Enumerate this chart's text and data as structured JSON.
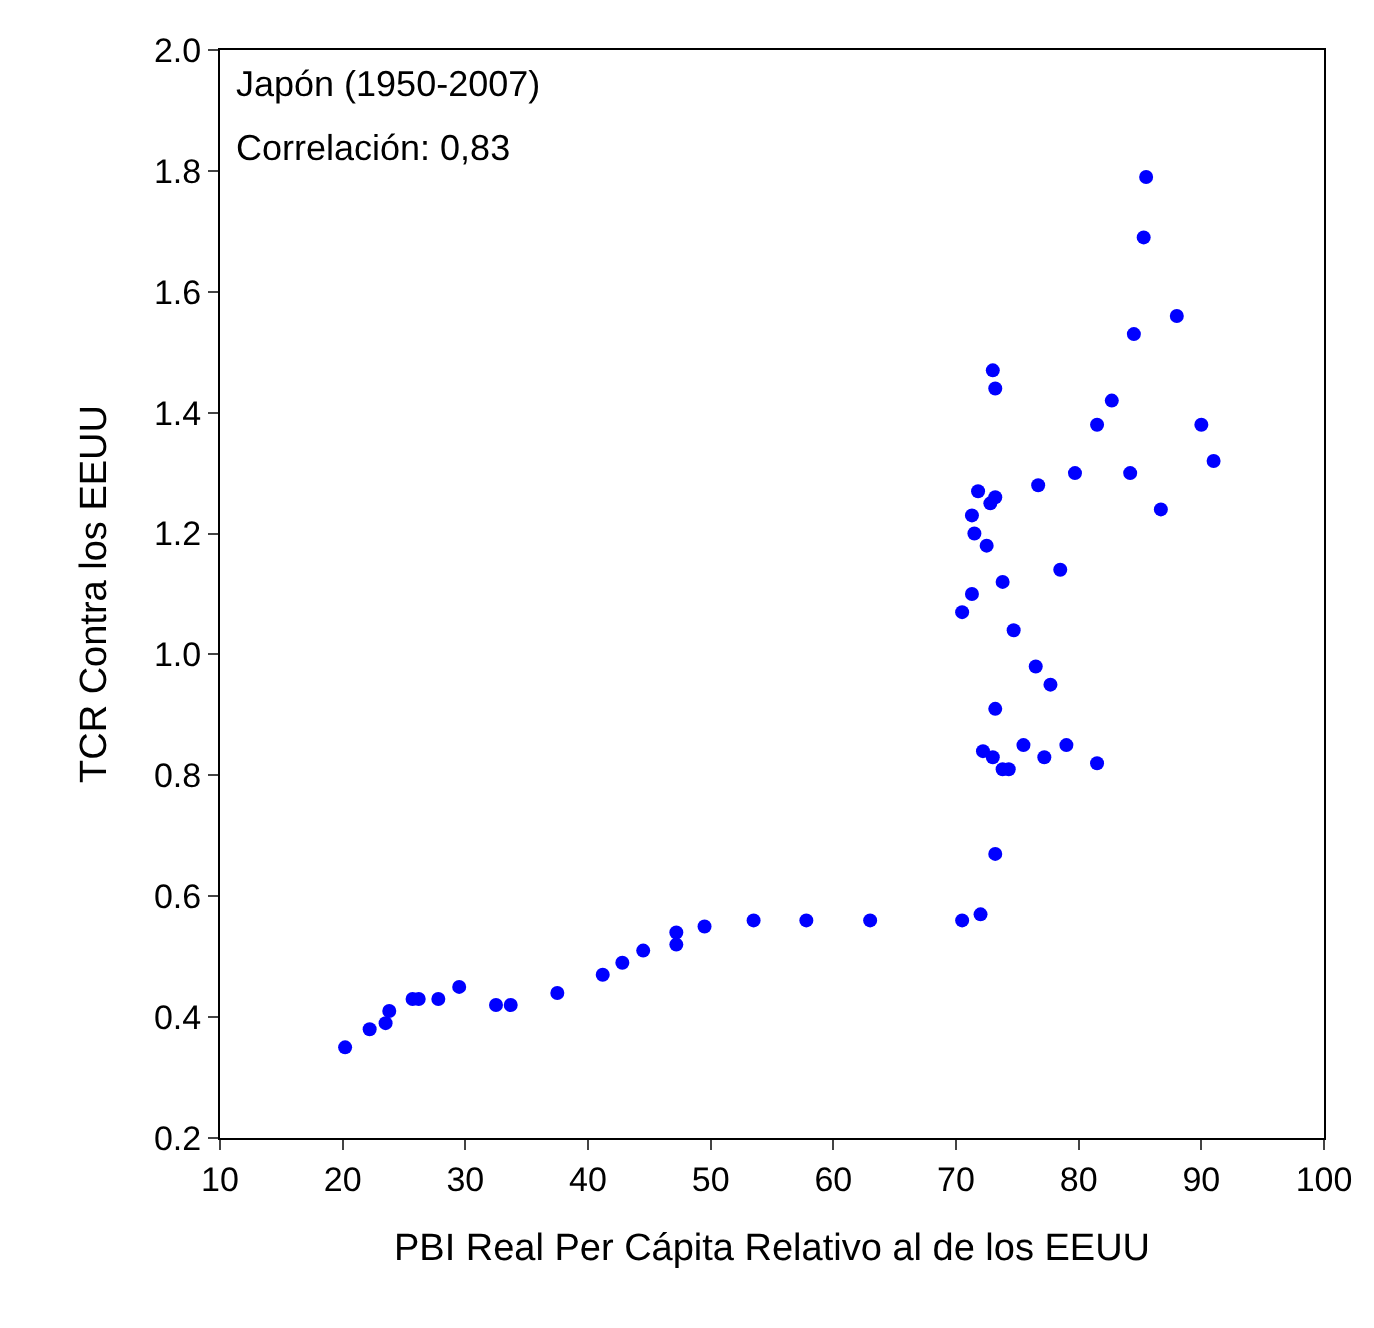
{
  "chart_data": {
    "type": "scatter",
    "xlabel": "PBI Real Per Cápita Relativo al de los EEUU",
    "ylabel": "TCR Contra los EEUU",
    "annotations": [
      "Japón (1950-2007)",
      "Correlación: 0,83"
    ],
    "x": [
      20.2,
      22.2,
      23.5,
      23.8,
      25.7,
      26.2,
      27.8,
      29.5,
      32.5,
      33.7,
      37.5,
      41.2,
      42.8,
      44.5,
      47.2,
      47.2,
      49.5,
      53.5,
      57.8,
      63,
      70.5,
      72,
      85.5,
      85.3,
      88,
      84.5,
      73,
      73.2,
      82.7,
      81.5,
      90,
      91,
      79.7,
      76.7,
      84.2,
      71.8,
      73.2,
      72.8,
      86.7,
      71.3,
      71.5,
      72.5,
      78.5,
      73.8,
      71.3,
      70.5,
      74.7,
      76.5,
      77.7,
      73.2,
      72.2,
      73,
      73.8,
      74.3,
      75.5,
      77.2,
      79,
      81.5,
      73.2
    ],
    "values": [
      0.35,
      0.38,
      0.39,
      0.41,
      0.43,
      0.43,
      0.43,
      0.45,
      0.42,
      0.42,
      0.44,
      0.47,
      0.49,
      0.51,
      0.52,
      0.54,
      0.55,
      0.56,
      0.56,
      0.56,
      0.56,
      0.57,
      1.79,
      1.69,
      1.56,
      1.53,
      1.47,
      1.44,
      1.42,
      1.38,
      1.38,
      1.32,
      1.3,
      1.28,
      1.3,
      1.27,
      1.26,
      1.25,
      1.24,
      1.23,
      1.2,
      1.18,
      1.14,
      1.12,
      1.1,
      1.07,
      1.04,
      0.98,
      0.95,
      0.91,
      0.84,
      0.83,
      0.81,
      0.81,
      0.85,
      0.83,
      0.85,
      0.82,
      0.67
    ],
    "color": "#0000ff",
    "marker": "circle",
    "xlim": [
      10,
      100
    ],
    "xticks": [
      10,
      20,
      30,
      40,
      50,
      60,
      70,
      80,
      90,
      100
    ],
    "ylim": [
      0.2,
      2.0
    ],
    "yticks": [
      {
        "value": 0.2,
        "label": "0.2"
      },
      {
        "value": 0.4,
        "label": "0.4"
      },
      {
        "value": 0.6,
        "label": "0.6"
      },
      {
        "value": 0.8,
        "label": "0.8"
      },
      {
        "value": 1.0,
        "label": "1.0"
      },
      {
        "value": 1.2,
        "label": "1.2"
      },
      {
        "value": 1.4,
        "label": "1.4"
      },
      {
        "value": 1.6,
        "label": "1.6"
      },
      {
        "value": 1.8,
        "label": "1.8"
      },
      {
        "value": 2.0,
        "label": "2.0"
      }
    ],
    "tick_labels": "xy"
  }
}
